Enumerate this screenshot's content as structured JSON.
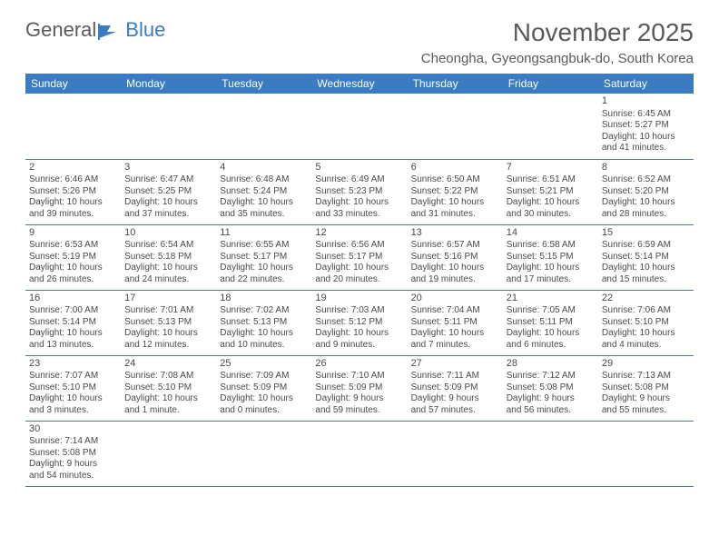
{
  "logo": {
    "text1": "General",
    "text2": "Blue"
  },
  "title": "November 2025",
  "subtitle": "Cheongha, Gyeongsangbuk-do, South Korea",
  "colors": {
    "header_bg": "#3b7bbf",
    "header_text": "#ffffff",
    "cell_border": "#3b7bbf",
    "body_text": "#4a4a4a",
    "title_text": "#5a5a5a",
    "background": "#ffffff"
  },
  "typography": {
    "title_fontsize": 28,
    "subtitle_fontsize": 15,
    "header_fontsize": 12,
    "daynum_fontsize": 11,
    "cell_fontsize": 10
  },
  "dayHeaders": [
    "Sunday",
    "Monday",
    "Tuesday",
    "Wednesday",
    "Thursday",
    "Friday",
    "Saturday"
  ],
  "weeks": [
    [
      null,
      null,
      null,
      null,
      null,
      null,
      {
        "d": "1",
        "sr": "Sunrise: 6:45 AM",
        "ss": "Sunset: 5:27 PM",
        "dl1": "Daylight: 10 hours",
        "dl2": "and 41 minutes."
      }
    ],
    [
      {
        "d": "2",
        "sr": "Sunrise: 6:46 AM",
        "ss": "Sunset: 5:26 PM",
        "dl1": "Daylight: 10 hours",
        "dl2": "and 39 minutes."
      },
      {
        "d": "3",
        "sr": "Sunrise: 6:47 AM",
        "ss": "Sunset: 5:25 PM",
        "dl1": "Daylight: 10 hours",
        "dl2": "and 37 minutes."
      },
      {
        "d": "4",
        "sr": "Sunrise: 6:48 AM",
        "ss": "Sunset: 5:24 PM",
        "dl1": "Daylight: 10 hours",
        "dl2": "and 35 minutes."
      },
      {
        "d": "5",
        "sr": "Sunrise: 6:49 AM",
        "ss": "Sunset: 5:23 PM",
        "dl1": "Daylight: 10 hours",
        "dl2": "and 33 minutes."
      },
      {
        "d": "6",
        "sr": "Sunrise: 6:50 AM",
        "ss": "Sunset: 5:22 PM",
        "dl1": "Daylight: 10 hours",
        "dl2": "and 31 minutes."
      },
      {
        "d": "7",
        "sr": "Sunrise: 6:51 AM",
        "ss": "Sunset: 5:21 PM",
        "dl1": "Daylight: 10 hours",
        "dl2": "and 30 minutes."
      },
      {
        "d": "8",
        "sr": "Sunrise: 6:52 AM",
        "ss": "Sunset: 5:20 PM",
        "dl1": "Daylight: 10 hours",
        "dl2": "and 28 minutes."
      }
    ],
    [
      {
        "d": "9",
        "sr": "Sunrise: 6:53 AM",
        "ss": "Sunset: 5:19 PM",
        "dl1": "Daylight: 10 hours",
        "dl2": "and 26 minutes."
      },
      {
        "d": "10",
        "sr": "Sunrise: 6:54 AM",
        "ss": "Sunset: 5:18 PM",
        "dl1": "Daylight: 10 hours",
        "dl2": "and 24 minutes."
      },
      {
        "d": "11",
        "sr": "Sunrise: 6:55 AM",
        "ss": "Sunset: 5:17 PM",
        "dl1": "Daylight: 10 hours",
        "dl2": "and 22 minutes."
      },
      {
        "d": "12",
        "sr": "Sunrise: 6:56 AM",
        "ss": "Sunset: 5:17 PM",
        "dl1": "Daylight: 10 hours",
        "dl2": "and 20 minutes."
      },
      {
        "d": "13",
        "sr": "Sunrise: 6:57 AM",
        "ss": "Sunset: 5:16 PM",
        "dl1": "Daylight: 10 hours",
        "dl2": "and 19 minutes."
      },
      {
        "d": "14",
        "sr": "Sunrise: 6:58 AM",
        "ss": "Sunset: 5:15 PM",
        "dl1": "Daylight: 10 hours",
        "dl2": "and 17 minutes."
      },
      {
        "d": "15",
        "sr": "Sunrise: 6:59 AM",
        "ss": "Sunset: 5:14 PM",
        "dl1": "Daylight: 10 hours",
        "dl2": "and 15 minutes."
      }
    ],
    [
      {
        "d": "16",
        "sr": "Sunrise: 7:00 AM",
        "ss": "Sunset: 5:14 PM",
        "dl1": "Daylight: 10 hours",
        "dl2": "and 13 minutes."
      },
      {
        "d": "17",
        "sr": "Sunrise: 7:01 AM",
        "ss": "Sunset: 5:13 PM",
        "dl1": "Daylight: 10 hours",
        "dl2": "and 12 minutes."
      },
      {
        "d": "18",
        "sr": "Sunrise: 7:02 AM",
        "ss": "Sunset: 5:13 PM",
        "dl1": "Daylight: 10 hours",
        "dl2": "and 10 minutes."
      },
      {
        "d": "19",
        "sr": "Sunrise: 7:03 AM",
        "ss": "Sunset: 5:12 PM",
        "dl1": "Daylight: 10 hours",
        "dl2": "and 9 minutes."
      },
      {
        "d": "20",
        "sr": "Sunrise: 7:04 AM",
        "ss": "Sunset: 5:11 PM",
        "dl1": "Daylight: 10 hours",
        "dl2": "and 7 minutes."
      },
      {
        "d": "21",
        "sr": "Sunrise: 7:05 AM",
        "ss": "Sunset: 5:11 PM",
        "dl1": "Daylight: 10 hours",
        "dl2": "and 6 minutes."
      },
      {
        "d": "22",
        "sr": "Sunrise: 7:06 AM",
        "ss": "Sunset: 5:10 PM",
        "dl1": "Daylight: 10 hours",
        "dl2": "and 4 minutes."
      }
    ],
    [
      {
        "d": "23",
        "sr": "Sunrise: 7:07 AM",
        "ss": "Sunset: 5:10 PM",
        "dl1": "Daylight: 10 hours",
        "dl2": "and 3 minutes."
      },
      {
        "d": "24",
        "sr": "Sunrise: 7:08 AM",
        "ss": "Sunset: 5:10 PM",
        "dl1": "Daylight: 10 hours",
        "dl2": "and 1 minute."
      },
      {
        "d": "25",
        "sr": "Sunrise: 7:09 AM",
        "ss": "Sunset: 5:09 PM",
        "dl1": "Daylight: 10 hours",
        "dl2": "and 0 minutes."
      },
      {
        "d": "26",
        "sr": "Sunrise: 7:10 AM",
        "ss": "Sunset: 5:09 PM",
        "dl1": "Daylight: 9 hours",
        "dl2": "and 59 minutes."
      },
      {
        "d": "27",
        "sr": "Sunrise: 7:11 AM",
        "ss": "Sunset: 5:09 PM",
        "dl1": "Daylight: 9 hours",
        "dl2": "and 57 minutes."
      },
      {
        "d": "28",
        "sr": "Sunrise: 7:12 AM",
        "ss": "Sunset: 5:08 PM",
        "dl1": "Daylight: 9 hours",
        "dl2": "and 56 minutes."
      },
      {
        "d": "29",
        "sr": "Sunrise: 7:13 AM",
        "ss": "Sunset: 5:08 PM",
        "dl1": "Daylight: 9 hours",
        "dl2": "and 55 minutes."
      }
    ],
    [
      {
        "d": "30",
        "sr": "Sunrise: 7:14 AM",
        "ss": "Sunset: 5:08 PM",
        "dl1": "Daylight: 9 hours",
        "dl2": "and 54 minutes."
      },
      null,
      null,
      null,
      null,
      null,
      null
    ]
  ]
}
